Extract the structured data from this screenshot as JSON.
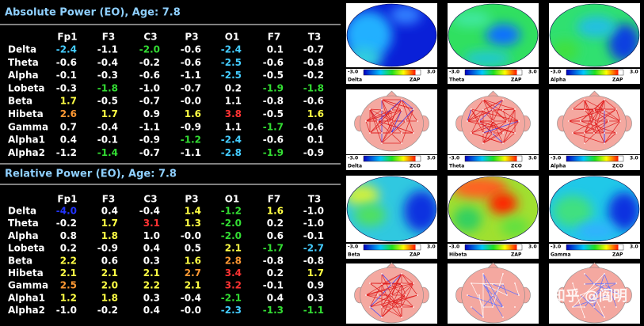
{
  "tables": [
    {
      "title": "Absolute Power (EO), Age: 7.8",
      "columns": [
        "Fp1",
        "F3",
        "C3",
        "P3",
        "O1",
        "F7",
        "T3"
      ],
      "rows": [
        {
          "label": "Delta",
          "cells": [
            "-2.4",
            "-1.1",
            "-2.0",
            "-0.6",
            "-2.4",
            "0.1",
            "-0.7"
          ],
          "colors": [
            "#44ccff",
            "#ffffff",
            "#33dd33",
            "#ffffff",
            "#44ccff",
            "#ffffff",
            "#ffffff"
          ]
        },
        {
          "label": "Theta",
          "cells": [
            "-0.6",
            "-0.4",
            "-0.2",
            "-0.6",
            "-2.5",
            "-0.6",
            "-0.8"
          ],
          "colors": [
            "#ffffff",
            "#ffffff",
            "#ffffff",
            "#ffffff",
            "#44ccff",
            "#ffffff",
            "#ffffff"
          ]
        },
        {
          "label": "Alpha",
          "cells": [
            "-0.1",
            "-0.3",
            "-0.6",
            "-1.1",
            "-2.5",
            "-0.5",
            "-0.2"
          ],
          "colors": [
            "#ffffff",
            "#ffffff",
            "#ffffff",
            "#ffffff",
            "#44ccff",
            "#ffffff",
            "#ffffff"
          ]
        },
        {
          "label": "Lobeta",
          "cells": [
            "-0.3",
            "-1.8",
            "-1.0",
            "-0.7",
            "0.2",
            "-1.9",
            "-1.8"
          ],
          "colors": [
            "#ffffff",
            "#33dd33",
            "#ffffff",
            "#ffffff",
            "#ffffff",
            "#33dd33",
            "#33dd33"
          ]
        },
        {
          "label": "Beta",
          "cells": [
            "1.7",
            "-0.5",
            "-0.7",
            "-0.0",
            "1.1",
            "-0.8",
            "-0.6"
          ],
          "colors": [
            "#ffff44",
            "#ffffff",
            "#ffffff",
            "#ffffff",
            "#ffffff",
            "#ffffff",
            "#ffffff"
          ]
        },
        {
          "label": "Hibeta",
          "cells": [
            "2.6",
            "1.7",
            "0.9",
            "1.6",
            "3.8",
            "-0.5",
            "1.6"
          ],
          "colors": [
            "#ff9933",
            "#ffff44",
            "#ffffff",
            "#ffff44",
            "#ff3333",
            "#ffffff",
            "#ffff44"
          ]
        },
        {
          "label": "Gamma",
          "cells": [
            "0.7",
            "-0.4",
            "-1.1",
            "-0.9",
            "1.1",
            "-1.7",
            "-0.6"
          ],
          "colors": [
            "#ffffff",
            "#ffffff",
            "#ffffff",
            "#ffffff",
            "#ffffff",
            "#33dd33",
            "#ffffff"
          ]
        },
        {
          "label": "Alpha1",
          "cells": [
            "0.4",
            "-0.1",
            "-0.9",
            "-1.2",
            "-2.4",
            "-0.6",
            "0.1"
          ],
          "colors": [
            "#ffffff",
            "#ffffff",
            "#ffffff",
            "#33dd33",
            "#44ccff",
            "#ffffff",
            "#ffffff"
          ]
        },
        {
          "label": "Alpha2",
          "cells": [
            "-1.2",
            "-1.4",
            "-0.7",
            "-1.1",
            "-2.8",
            "-1.9",
            "-0.9"
          ],
          "colors": [
            "#ffffff",
            "#33dd33",
            "#ffffff",
            "#ffffff",
            "#44ccff",
            "#33dd33",
            "#ffffff"
          ]
        }
      ]
    },
    {
      "title": "Relative Power (EO), Age: 7.8",
      "columns": [
        "Fp1",
        "F3",
        "C3",
        "P3",
        "O1",
        "F7",
        "T3"
      ],
      "rows": [
        {
          "label": "Delta",
          "cells": [
            "-4.0",
            "0.4",
            "-0.4",
            "1.4",
            "-1.2",
            "1.6",
            "-1.0"
          ],
          "colors": [
            "#2233ff",
            "#ffffff",
            "#ffffff",
            "#ffff44",
            "#33dd33",
            "#ffff44",
            "#ffffff"
          ]
        },
        {
          "label": "Theta",
          "cells": [
            "-0.2",
            "1.7",
            "3.1",
            "1.3",
            "-2.0",
            "0.2",
            "-1.0"
          ],
          "colors": [
            "#ffffff",
            "#ffff44",
            "#ff3333",
            "#ffff44",
            "#33dd33",
            "#ffffff",
            "#ffffff"
          ]
        },
        {
          "label": "Alpha",
          "cells": [
            "0.8",
            "1.8",
            "1.0",
            "-0.0",
            "-2.0",
            "0.6",
            "-0.1"
          ],
          "colors": [
            "#ffffff",
            "#ffff44",
            "#ffffff",
            "#ffffff",
            "#33dd33",
            "#ffffff",
            "#ffffff"
          ]
        },
        {
          "label": "Lobeta",
          "cells": [
            "0.2",
            "-0.9",
            "0.4",
            "0.5",
            "2.1",
            "-1.7",
            "-2.7"
          ],
          "colors": [
            "#ffffff",
            "#ffffff",
            "#ffffff",
            "#ffffff",
            "#ffff44",
            "#33dd33",
            "#44ccff"
          ]
        },
        {
          "label": "Beta",
          "cells": [
            "2.2",
            "0.6",
            "0.3",
            "1.6",
            "2.8",
            "-0.8",
            "-0.8"
          ],
          "colors": [
            "#ffff44",
            "#ffffff",
            "#ffffff",
            "#ffff44",
            "#ff9933",
            "#ffffff",
            "#ffffff"
          ]
        },
        {
          "label": "Hibeta",
          "cells": [
            "2.1",
            "2.1",
            "2.1",
            "2.7",
            "3.4",
            "0.2",
            "1.7"
          ],
          "colors": [
            "#ffff44",
            "#ffff44",
            "#ffff44",
            "#ff9933",
            "#ff3333",
            "#ffffff",
            "#ffff44"
          ]
        },
        {
          "label": "Gamma",
          "cells": [
            "2.5",
            "2.0",
            "2.2",
            "2.1",
            "3.2",
            "-0.1",
            "0.9"
          ],
          "colors": [
            "#ff9933",
            "#ffff44",
            "#ffff44",
            "#ffff44",
            "#ff3333",
            "#ffffff",
            "#ffffff"
          ]
        },
        {
          "label": "Alpha1",
          "cells": [
            "1.2",
            "1.8",
            "0.3",
            "-0.4",
            "-2.1",
            "0.4",
            "0.3"
          ],
          "colors": [
            "#ffff44",
            "#ffff44",
            "#ffffff",
            "#ffffff",
            "#33dd33",
            "#ffffff",
            "#ffffff"
          ]
        },
        {
          "label": "Alpha2",
          "cells": [
            "-1.0",
            "-0.2",
            "0.4",
            "-0.0",
            "-2.3",
            "-1.3",
            "-1.1"
          ],
          "colors": [
            "#ffffff",
            "#ffffff",
            "#ffffff",
            "#ffffff",
            "#44ccff",
            "#33dd33",
            "#33dd33"
          ]
        }
      ]
    }
  ],
  "maps": [
    {
      "kind": "topo",
      "scale_min": "-3.0",
      "scale_max": "3.0",
      "unit": "ZAP",
      "labels": [
        "Delta",
        "Theta",
        "Alpha"
      ]
    },
    {
      "kind": "coherence",
      "scale_min": "-3.0",
      "scale_max": "3.0",
      "unit": "ZCO",
      "labels": [
        "Delta",
        "Theta",
        "Alpha"
      ]
    },
    {
      "kind": "topo",
      "scale_min": "-3.0",
      "scale_max": "3.0",
      "unit": "ZAP",
      "labels": [
        "Beta",
        "Hibeta",
        "Gamma"
      ]
    },
    {
      "kind": "coherence",
      "labels": []
    }
  ],
  "watermark": "知乎 @阎明"
}
